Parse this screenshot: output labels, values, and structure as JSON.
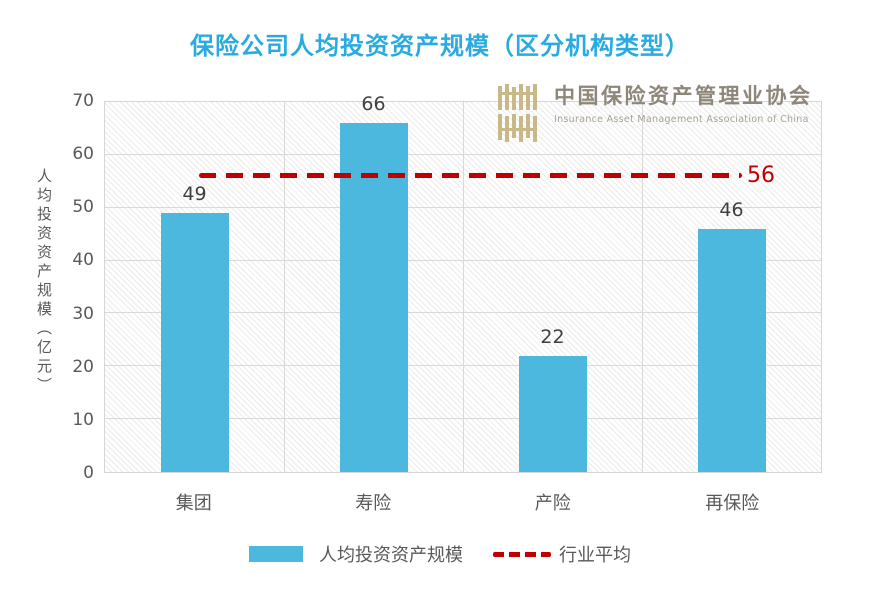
{
  "title": "保险公司人均投资资产规模（区分机构类型）",
  "logo": {
    "name_cn": "中国保险资产管理业协会",
    "name_en": "Insurance Asset Management Association of China",
    "mark": "iamac-seal",
    "mark_color": "#c9b989"
  },
  "chart_data": {
    "type": "bar",
    "title": "保险公司人均投资资产规模（区分机构类型）",
    "categories": [
      "集团",
      "寿险",
      "产险",
      "再保险"
    ],
    "series": [
      {
        "name": "人均投资资产规模",
        "values": [
          49,
          66,
          22,
          46
        ],
        "color": "#4db8dd"
      }
    ],
    "reference_line": {
      "name": "行业平均",
      "value": 56,
      "label": "56",
      "color": "#c00000",
      "style": "dashed"
    },
    "xlabel": "",
    "ylabel": "人均投资资产规模（亿元）",
    "ylim": [
      0,
      70
    ],
    "ytick_step": 10,
    "yticks": [
      0,
      10,
      20,
      30,
      40,
      50,
      60,
      70
    ],
    "grid": "horizontal and vertical light gray",
    "legend_position": "bottom"
  },
  "colors": {
    "title": "#29abe2",
    "bar": "#4db8dd",
    "reference": "#c00000",
    "axis_text": "#595959",
    "value_label": "#404040",
    "gridline": "#d9d9d9",
    "logo_gold": "#c9b989"
  }
}
